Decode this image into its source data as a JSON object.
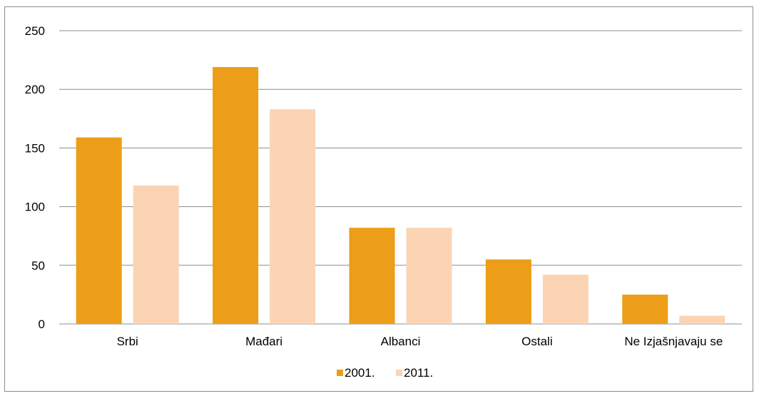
{
  "chart_data": {
    "type": "bar",
    "categories": [
      "Srbi",
      "Mađari",
      "Albanci",
      "Ostali",
      "Ne Izjašnjavaju se"
    ],
    "series": [
      {
        "name": "2001.",
        "values": [
          159,
          219,
          82,
          55,
          25
        ],
        "color": "#ed9e18"
      },
      {
        "name": "2011.",
        "values": [
          118,
          183,
          82,
          42,
          7
        ],
        "color": "#fbd4b4"
      }
    ],
    "ylim": [
      0,
      250
    ],
    "yticks": [
      0,
      50,
      100,
      150,
      200,
      250
    ],
    "title": "",
    "xlabel": "",
    "ylabel": "",
    "grid": true,
    "legend_position": "bottom-center"
  }
}
